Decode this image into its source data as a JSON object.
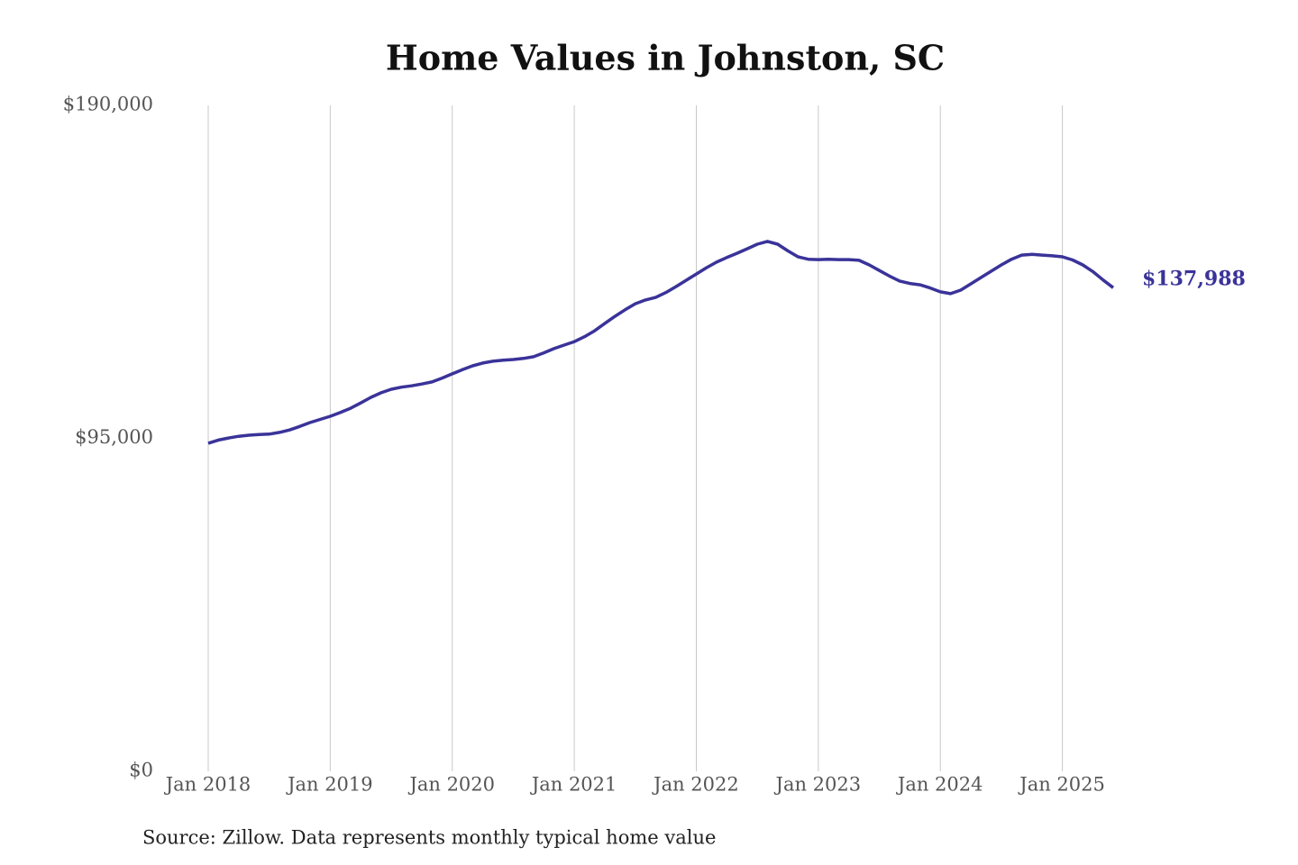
{
  "chart_data": {
    "type": "line",
    "title": "Home Values in Johnston, SC",
    "source": "Source: Zillow. Data represents monthly typical home value",
    "x": [
      "2018-01",
      "2018-02",
      "2018-03",
      "2018-04",
      "2018-05",
      "2018-06",
      "2018-07",
      "2018-08",
      "2018-09",
      "2018-10",
      "2018-11",
      "2018-12",
      "2019-01",
      "2019-02",
      "2019-03",
      "2019-04",
      "2019-05",
      "2019-06",
      "2019-07",
      "2019-08",
      "2019-09",
      "2019-10",
      "2019-11",
      "2019-12",
      "2020-01",
      "2020-02",
      "2020-03",
      "2020-04",
      "2020-05",
      "2020-06",
      "2020-07",
      "2020-08",
      "2020-09",
      "2020-10",
      "2020-11",
      "2020-12",
      "2021-01",
      "2021-02",
      "2021-03",
      "2021-04",
      "2021-05",
      "2021-06",
      "2021-07",
      "2021-08",
      "2021-09",
      "2021-10",
      "2021-11",
      "2021-12",
      "2022-01",
      "2022-02",
      "2022-03",
      "2022-04",
      "2022-05",
      "2022-06",
      "2022-07",
      "2022-08",
      "2022-09",
      "2022-10",
      "2022-11",
      "2022-12",
      "2023-01",
      "2023-02",
      "2023-03",
      "2023-04",
      "2023-05",
      "2023-06",
      "2023-07",
      "2023-08",
      "2023-09",
      "2023-10",
      "2023-11",
      "2023-12",
      "2024-01",
      "2024-02",
      "2024-03",
      "2024-04",
      "2024-05",
      "2024-06",
      "2024-07",
      "2024-08",
      "2024-09",
      "2024-10",
      "2024-11",
      "2024-12",
      "2025-01",
      "2025-02",
      "2025-03",
      "2025-04",
      "2025-05",
      "2025-06"
    ],
    "values": [
      93600,
      94500,
      95100,
      95600,
      95900,
      96100,
      96200,
      96700,
      97400,
      98400,
      99500,
      100400,
      101300,
      102400,
      103600,
      105100,
      106700,
      108000,
      109000,
      109600,
      110000,
      110500,
      111100,
      112200,
      113400,
      114600,
      115700,
      116500,
      117000,
      117300,
      117500,
      117800,
      118300,
      119400,
      120600,
      121600,
      122600,
      124000,
      125700,
      127800,
      129800,
      131700,
      133400,
      134500,
      135200,
      136600,
      138300,
      140100,
      141900,
      143700,
      145300,
      146600,
      147800,
      149100,
      150400,
      151200,
      150400,
      148500,
      146800,
      146100,
      146000,
      146100,
      146000,
      146000,
      145800,
      144500,
      142900,
      141300,
      139900,
      139200,
      138800,
      137900,
      136800,
      136300,
      137300,
      139100,
      140900,
      142700,
      144500,
      146100,
      147300,
      147500,
      147300,
      147100,
      146800,
      145900,
      144500,
      142600,
      140200,
      137988
    ],
    "value_labels": [
      null,
      null,
      null,
      null,
      null,
      null,
      null,
      null,
      null,
      null,
      null,
      null,
      null,
      null,
      null,
      null,
      null,
      null,
      null,
      null,
      null,
      null,
      null,
      null,
      null,
      null,
      null,
      null,
      null,
      null,
      null,
      null,
      null,
      null,
      null,
      null,
      null,
      null,
      null,
      null,
      null,
      null,
      null,
      null,
      null,
      null,
      null,
      null,
      null,
      null,
      null,
      null,
      null,
      null,
      null,
      null,
      null,
      null,
      null,
      null,
      null,
      null,
      null,
      null,
      null,
      null,
      null,
      null,
      null,
      null,
      null,
      null,
      null,
      null,
      null,
      null,
      null,
      null,
      null,
      null,
      null,
      null,
      null,
      null,
      null,
      null,
      null,
      null,
      null,
      "$137,988"
    ],
    "color": "#3a3399",
    "xlim": [
      "2018-01",
      "2025-06"
    ],
    "xticks": [
      {
        "value": "2018-01",
        "label": "Jan 2018"
      },
      {
        "value": "2019-01",
        "label": "Jan 2019"
      },
      {
        "value": "2020-01",
        "label": "Jan 2020"
      },
      {
        "value": "2021-01",
        "label": "Jan 2021"
      },
      {
        "value": "2022-01",
        "label": "Jan 2022"
      },
      {
        "value": "2023-01",
        "label": "Jan 2023"
      },
      {
        "value": "2024-01",
        "label": "Jan 2024"
      },
      {
        "value": "2025-01",
        "label": "Jan 2025"
      }
    ],
    "ylim": [
      0,
      190000
    ],
    "yticks": [
      {
        "value": 0,
        "label": "$0"
      },
      {
        "value": 95000,
        "label": "$95,000"
      },
      {
        "value": 190000,
        "label": "$190,000"
      }
    ],
    "grid": "x"
  }
}
